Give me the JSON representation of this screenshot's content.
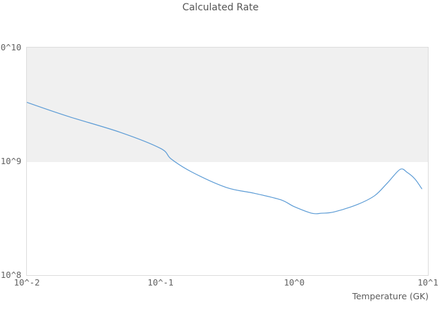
{
  "title": "Calculated Rate",
  "chart_data": {
    "type": "line",
    "title": "Calculated Rate",
    "xlabel": "Temperature (GK)",
    "ylabel": "",
    "x_scale": "log",
    "y_scale": "log",
    "xlim": [
      0.01,
      10
    ],
    "ylim": [
      100000000.0,
      10000000000.0
    ],
    "x_ticks": [
      "10^-2",
      "10^-1",
      "10^0",
      "10^1"
    ],
    "y_ticks": [
      "10^10",
      "10^9",
      "10^8"
    ],
    "legend": "none",
    "grid": "horizontal decade band: region between 10^9 and 10^10 shaded light gray, region 10^8 to 10^9 white",
    "series": [
      {
        "name": "calculated rate",
        "x": [
          0.01,
          0.02,
          0.05,
          0.1,
          0.12,
          0.17,
          0.31,
          0.5,
          0.79,
          1.0,
          1.35,
          1.6,
          2.0,
          3.0,
          4.0,
          5.0,
          6.2,
          7.0,
          8.0,
          9.0
        ],
        "y": [
          3300000000.0,
          2500000000.0,
          1800000000.0,
          1300000000.0,
          1050000000.0,
          810000000.0,
          590000000.0,
          525000000.0,
          460000000.0,
          400000000.0,
          350000000.0,
          350000000.0,
          360000000.0,
          420000000.0,
          500000000.0,
          650000000.0,
          850000000.0,
          800000000.0,
          700000000.0,
          575000000.0
        ]
      }
    ],
    "colors": {
      "line": "#5b9bd5",
      "band_fill": "#f0f0f0",
      "plot_border": "#dcdcdc",
      "tick_text": "#616161",
      "title_text": "#555555"
    }
  }
}
